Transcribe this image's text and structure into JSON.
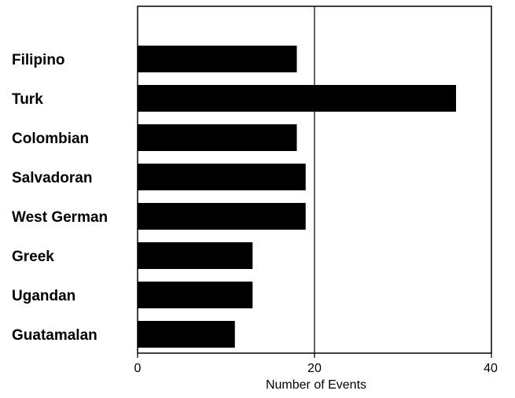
{
  "chart_data": {
    "type": "bar",
    "orientation": "horizontal",
    "categories": [
      "Filipino",
      "Turk",
      "Colombian",
      "Salvadoran",
      "West German",
      "Greek",
      "Ugandan",
      "Guatamalan"
    ],
    "values": [
      18,
      36,
      18,
      19,
      19,
      13,
      13,
      11
    ],
    "xlabel": "Number of Events",
    "ylabel": "",
    "xlim": [
      0,
      40
    ],
    "xticks": [
      "0",
      "20",
      "40"
    ],
    "grid": "vertical line at 20",
    "legend": "none",
    "bar_color": "#000000",
    "axis_color": "#000000"
  }
}
